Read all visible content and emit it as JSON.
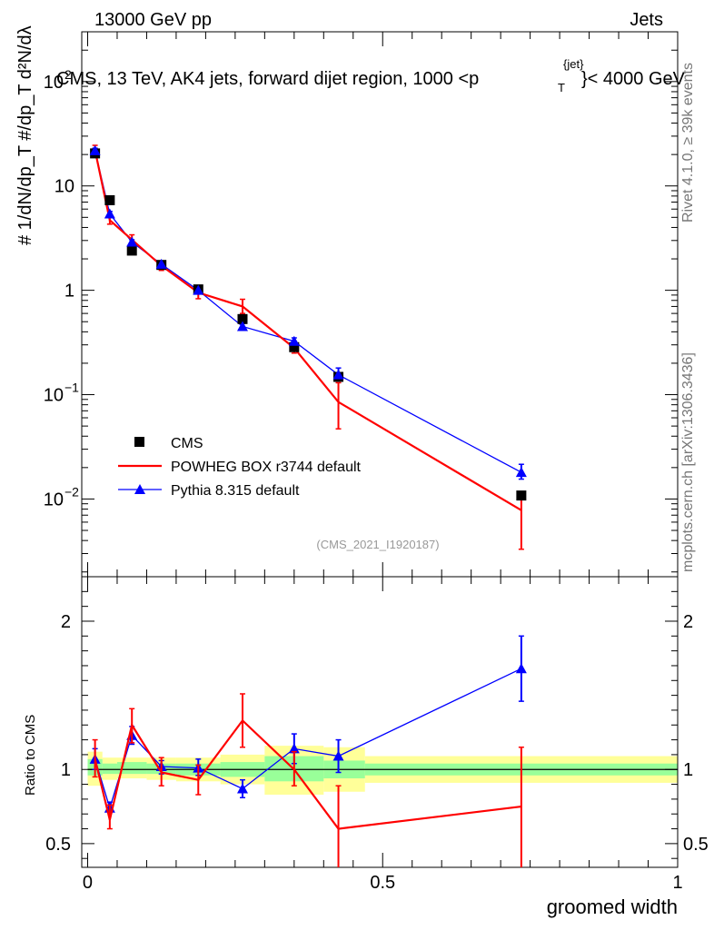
{
  "header": {
    "left": "13000 GeV pp",
    "right": "Jets"
  },
  "title": "CMS, 13 TeV, AK4 jets, forward dijet region, 1000 <p",
  "title_sup": "{jet}",
  "title_sub": "T",
  "title_end": "}< 4000 GeV",
  "ylabel_top": "#  1/dN/dp_T  #/dp_T  d²N/dλ",
  "ylabel_ratio": "Ratio to CMS",
  "xlabel": "groomed width",
  "side_rivet": "Rivet 4.1.0, ≥ 39k events",
  "side_mcplots": "mcplots.cern.ch [arXiv:1306.3436]",
  "analysis_tag": "(CMS_2021_I1920187)",
  "colors": {
    "data": "#000000",
    "powheg": "#ff0000",
    "pythia": "#0000ff",
    "band_inner": "#99ff99",
    "band_outer": "#ffff99"
  },
  "chart_data": [
    {
      "type": "line",
      "yscale": "log",
      "xlim": [
        -0.01,
        1.0
      ],
      "ylim": [
        0.0018,
        300
      ],
      "yticks": [
        0.01,
        0.1,
        1,
        10,
        100
      ],
      "ytick_labels": [
        "10^-2",
        "10^-1",
        "1",
        "10",
        "10^2"
      ],
      "x": [
        0.0125,
        0.0375,
        0.075,
        0.125,
        0.1875,
        0.2625,
        0.35,
        0.425,
        0.735
      ],
      "series": [
        {
          "name": "CMS",
          "marker": "square",
          "values": [
            20.5,
            7.3,
            2.4,
            1.75,
            1.02,
            0.53,
            0.285,
            0.148,
            0.0108
          ]
        },
        {
          "name": "POWHEG BOX r3744 default",
          "marker": "none",
          "values": [
            22.0,
            4.7,
            3.05,
            1.72,
            0.95,
            0.7,
            0.28,
            0.085,
            0.0078
          ],
          "err_lo": [
            19.5,
            4.3,
            2.7,
            1.55,
            0.83,
            0.6,
            0.25,
            0.047,
            0.0033
          ],
          "err_hi": [
            24.5,
            5.1,
            3.4,
            1.9,
            1.05,
            0.82,
            0.32,
            0.13,
            0.011
          ]
        },
        {
          "name": "Pythia 8.315 default",
          "marker": "triangle",
          "values": [
            21.8,
            5.4,
            2.9,
            1.78,
            1.0,
            0.45,
            0.325,
            0.155,
            0.018
          ],
          "err_lo": [
            20.5,
            5.1,
            2.75,
            1.7,
            0.95,
            0.42,
            0.3,
            0.135,
            0.0155
          ],
          "err_hi": [
            23.0,
            5.7,
            3.05,
            1.86,
            1.05,
            0.48,
            0.35,
            0.18,
            0.0215
          ]
        }
      ],
      "legend": [
        "CMS",
        "POWHEG BOX r3744 default",
        "Pythia 8.315 default"
      ]
    },
    {
      "type": "line",
      "ylabel": "Ratio to CMS",
      "xlabel": "groomed width",
      "xlim": [
        -0.01,
        1.0
      ],
      "ylim": [
        0.34,
        2.3
      ],
      "yticks": [
        0.5,
        1,
        2
      ],
      "ytick_labels": [
        "0.5",
        "1",
        "2"
      ],
      "xticks": [
        0,
        0.5,
        1
      ],
      "xtick_labels": [
        "0",
        "0.5",
        "1"
      ],
      "x": [
        0.0125,
        0.0375,
        0.075,
        0.125,
        0.1875,
        0.2625,
        0.35,
        0.425,
        0.735
      ],
      "bands": [
        {
          "x0": 0.0,
          "x1": 0.025,
          "inner": [
            0.96,
            1.07
          ],
          "outer": [
            0.89,
            1.12
          ]
        },
        {
          "x0": 0.025,
          "x1": 0.05,
          "inner": [
            0.97,
            1.04
          ],
          "outer": [
            0.93,
            1.08
          ]
        },
        {
          "x0": 0.05,
          "x1": 0.1,
          "inner": [
            0.97,
            1.05
          ],
          "outer": [
            0.94,
            1.08
          ]
        },
        {
          "x0": 0.1,
          "x1": 0.15,
          "inner": [
            0.97,
            1.04
          ],
          "outer": [
            0.93,
            1.08
          ]
        },
        {
          "x0": 0.15,
          "x1": 0.225,
          "inner": [
            0.96,
            1.04
          ],
          "outer": [
            0.92,
            1.08
          ]
        },
        {
          "x0": 0.225,
          "x1": 0.3,
          "inner": [
            0.95,
            1.05
          ],
          "outer": [
            0.9,
            1.1
          ]
        },
        {
          "x0": 0.3,
          "x1": 0.4,
          "inner": [
            0.92,
            1.09
          ],
          "outer": [
            0.83,
            1.16
          ]
        },
        {
          "x0": 0.4,
          "x1": 0.47,
          "inner": [
            0.94,
            1.06
          ],
          "outer": [
            0.85,
            1.15
          ]
        },
        {
          "x0": 0.47,
          "x1": 1.0,
          "inner": [
            0.96,
            1.04
          ],
          "outer": [
            0.91,
            1.09
          ]
        }
      ],
      "series": [
        {
          "name": "POWHEG BOX r3744 default",
          "values": [
            1.07,
            0.66,
            1.3,
            0.98,
            0.93,
            1.33,
            1.0,
            0.6,
            0.75
          ],
          "err_lo": [
            0.95,
            0.6,
            1.18,
            0.89,
            0.83,
            1.15,
            0.89,
            0.34,
            0.34
          ],
          "err_hi": [
            1.2,
            0.76,
            1.41,
            1.08,
            1.03,
            1.51,
            1.12,
            0.89,
            1.15
          ]
        },
        {
          "name": "Pythia 8.315 default",
          "values": [
            1.07,
            0.74,
            1.23,
            1.02,
            1.01,
            0.87,
            1.14,
            1.09,
            1.68
          ],
          "err_lo": [
            1.0,
            0.71,
            1.17,
            0.97,
            0.96,
            0.81,
            1.04,
            0.98,
            1.46
          ],
          "err_hi": [
            1.14,
            0.78,
            1.29,
            1.06,
            1.07,
            0.93,
            1.24,
            1.2,
            1.9
          ]
        }
      ]
    }
  ]
}
